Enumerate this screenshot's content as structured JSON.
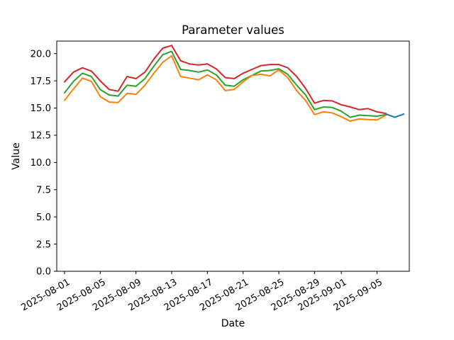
{
  "figure": {
    "background": "#ffffff",
    "spine_color": "#000000"
  },
  "chart_data": {
    "type": "line",
    "title": "Parameter values",
    "xlabel": "Date",
    "ylabel": "Value",
    "grid": false,
    "legend": "none",
    "y_axis": {
      "min": 0.0,
      "max": 21.15,
      "tick_labels": [
        "0.0",
        "2.5",
        "5.0",
        "7.5",
        "10.0",
        "12.5",
        "15.0",
        "17.5",
        "20.0"
      ]
    },
    "x_axis": {
      "start": "2025-08-01",
      "end": "2025-09-08",
      "tick_labels": [
        "2025-08-01",
        "2025-08-05",
        "2025-08-09",
        "2025-08-13",
        "2025-08-17",
        "2025-08-21",
        "2025-08-25",
        "2025-08-29",
        "2025-09-01",
        "2025-09-05"
      ]
    },
    "dates": [
      "2025-08-01",
      "2025-08-02",
      "2025-08-03",
      "2025-08-04",
      "2025-08-05",
      "2025-08-06",
      "2025-08-07",
      "2025-08-08",
      "2025-08-09",
      "2025-08-10",
      "2025-08-11",
      "2025-08-12",
      "2025-08-13",
      "2025-08-14",
      "2025-08-15",
      "2025-08-16",
      "2025-08-17",
      "2025-08-18",
      "2025-08-19",
      "2025-08-20",
      "2025-08-21",
      "2025-08-22",
      "2025-08-23",
      "2025-08-24",
      "2025-08-25",
      "2025-08-26",
      "2025-08-27",
      "2025-08-28",
      "2025-08-29",
      "2025-08-30",
      "2025-08-31",
      "2025-09-01",
      "2025-09-02",
      "2025-09-03",
      "2025-09-04",
      "2025-09-05",
      "2025-09-06"
    ],
    "series": [
      {
        "id": "line-red",
        "color": "#d62728",
        "values": [
          17.4,
          18.3,
          18.7,
          18.4,
          17.5,
          16.7,
          16.55,
          17.9,
          17.7,
          18.3,
          19.5,
          20.5,
          20.75,
          19.35,
          19.05,
          18.95,
          19.05,
          18.6,
          17.8,
          17.7,
          18.2,
          18.55,
          18.9,
          19.0,
          19.0,
          18.7,
          17.9,
          16.8,
          15.45,
          15.7,
          15.65,
          15.3,
          15.1,
          14.85,
          14.95,
          14.65,
          14.5
        ]
      },
      {
        "id": "line-green",
        "color": "#2ca02c",
        "values": [
          16.4,
          17.45,
          18.2,
          17.9,
          16.7,
          16.2,
          16.1,
          17.1,
          17.0,
          17.7,
          18.85,
          19.9,
          20.2,
          18.55,
          18.45,
          18.3,
          18.5,
          18.05,
          17.1,
          17.0,
          17.6,
          18.0,
          18.4,
          18.45,
          18.6,
          18.1,
          17.1,
          16.2,
          14.85,
          15.1,
          15.05,
          14.7,
          14.15,
          14.35,
          14.3,
          14.25,
          14.4
        ]
      },
      {
        "id": "line-orange",
        "color": "#ff7f0e",
        "values": [
          15.7,
          16.75,
          17.75,
          17.45,
          16.05,
          15.55,
          15.5,
          16.35,
          16.25,
          17.1,
          18.2,
          19.2,
          19.8,
          17.9,
          17.75,
          17.6,
          18.05,
          17.6,
          16.6,
          16.7,
          17.4,
          18.0,
          18.1,
          17.95,
          18.5,
          17.8,
          16.6,
          15.7,
          14.4,
          14.65,
          14.55,
          14.2,
          13.8,
          14.0,
          13.95,
          13.9,
          14.35
        ]
      },
      {
        "id": "line-blue",
        "color": "#1f77b4",
        "dates": [
          "2025-09-06",
          "2025-09-07",
          "2025-09-08"
        ],
        "values": [
          14.45,
          14.15,
          14.45
        ]
      }
    ]
  }
}
